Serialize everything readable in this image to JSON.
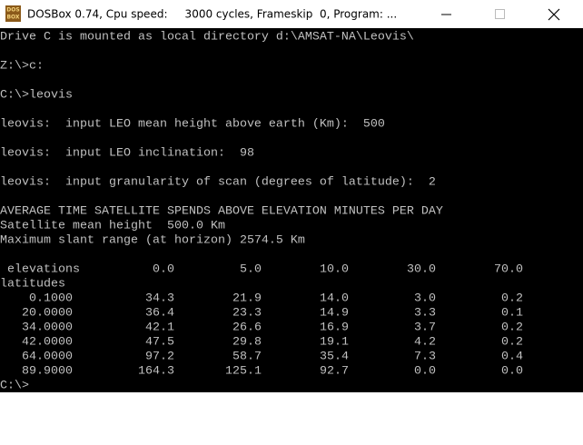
{
  "window": {
    "title": "DOSBox 0.74, Cpu speed:     3000 cycles, Frameskip  0, Program: ...",
    "icon_text": [
      "DOS",
      "BOX"
    ]
  },
  "console": {
    "lines": [
      "Drive C is mounted as local directory d:\\AMSAT-NA\\Leovis\\",
      "Z:\\>c:",
      "C:\\>leovis",
      "leovis:  input LEO mean height above earth (Km):  500",
      "leovis:  input LEO inclination:  98",
      "leovis:  input granularity of scan (degrees of latitude):  2",
      "AVERAGE TIME SATELLITE SPENDS ABOVE ELEVATION MINUTES PER DAY",
      "Satellite mean height  500.0 Km",
      "Maximum slant range (at horizon) 2574.5 Km"
    ],
    "table": {
      "column_label": "elevations",
      "row_label": "latitudes",
      "elevations": [
        "0.0",
        "5.0",
        "10.0",
        "30.0",
        "70.0"
      ],
      "rows": [
        {
          "latitude": "0.1000",
          "values": [
            "34.3",
            "21.9",
            "14.0",
            "3.0",
            "0.2"
          ]
        },
        {
          "latitude": "20.0000",
          "values": [
            "36.4",
            "23.3",
            "14.9",
            "3.3",
            "0.1"
          ]
        },
        {
          "latitude": "34.0000",
          "values": [
            "42.1",
            "26.6",
            "16.9",
            "3.7",
            "0.2"
          ]
        },
        {
          "latitude": "42.0000",
          "values": [
            "47.5",
            "29.8",
            "19.1",
            "4.2",
            "0.2"
          ]
        },
        {
          "latitude": "64.0000",
          "values": [
            "97.2",
            "58.7",
            "35.4",
            "7.3",
            "0.4"
          ]
        },
        {
          "latitude": "89.9000",
          "values": [
            "164.3",
            "125.1",
            "92.7",
            "0.0",
            "0.0"
          ]
        }
      ]
    },
    "prompt": "C:\\>"
  }
}
